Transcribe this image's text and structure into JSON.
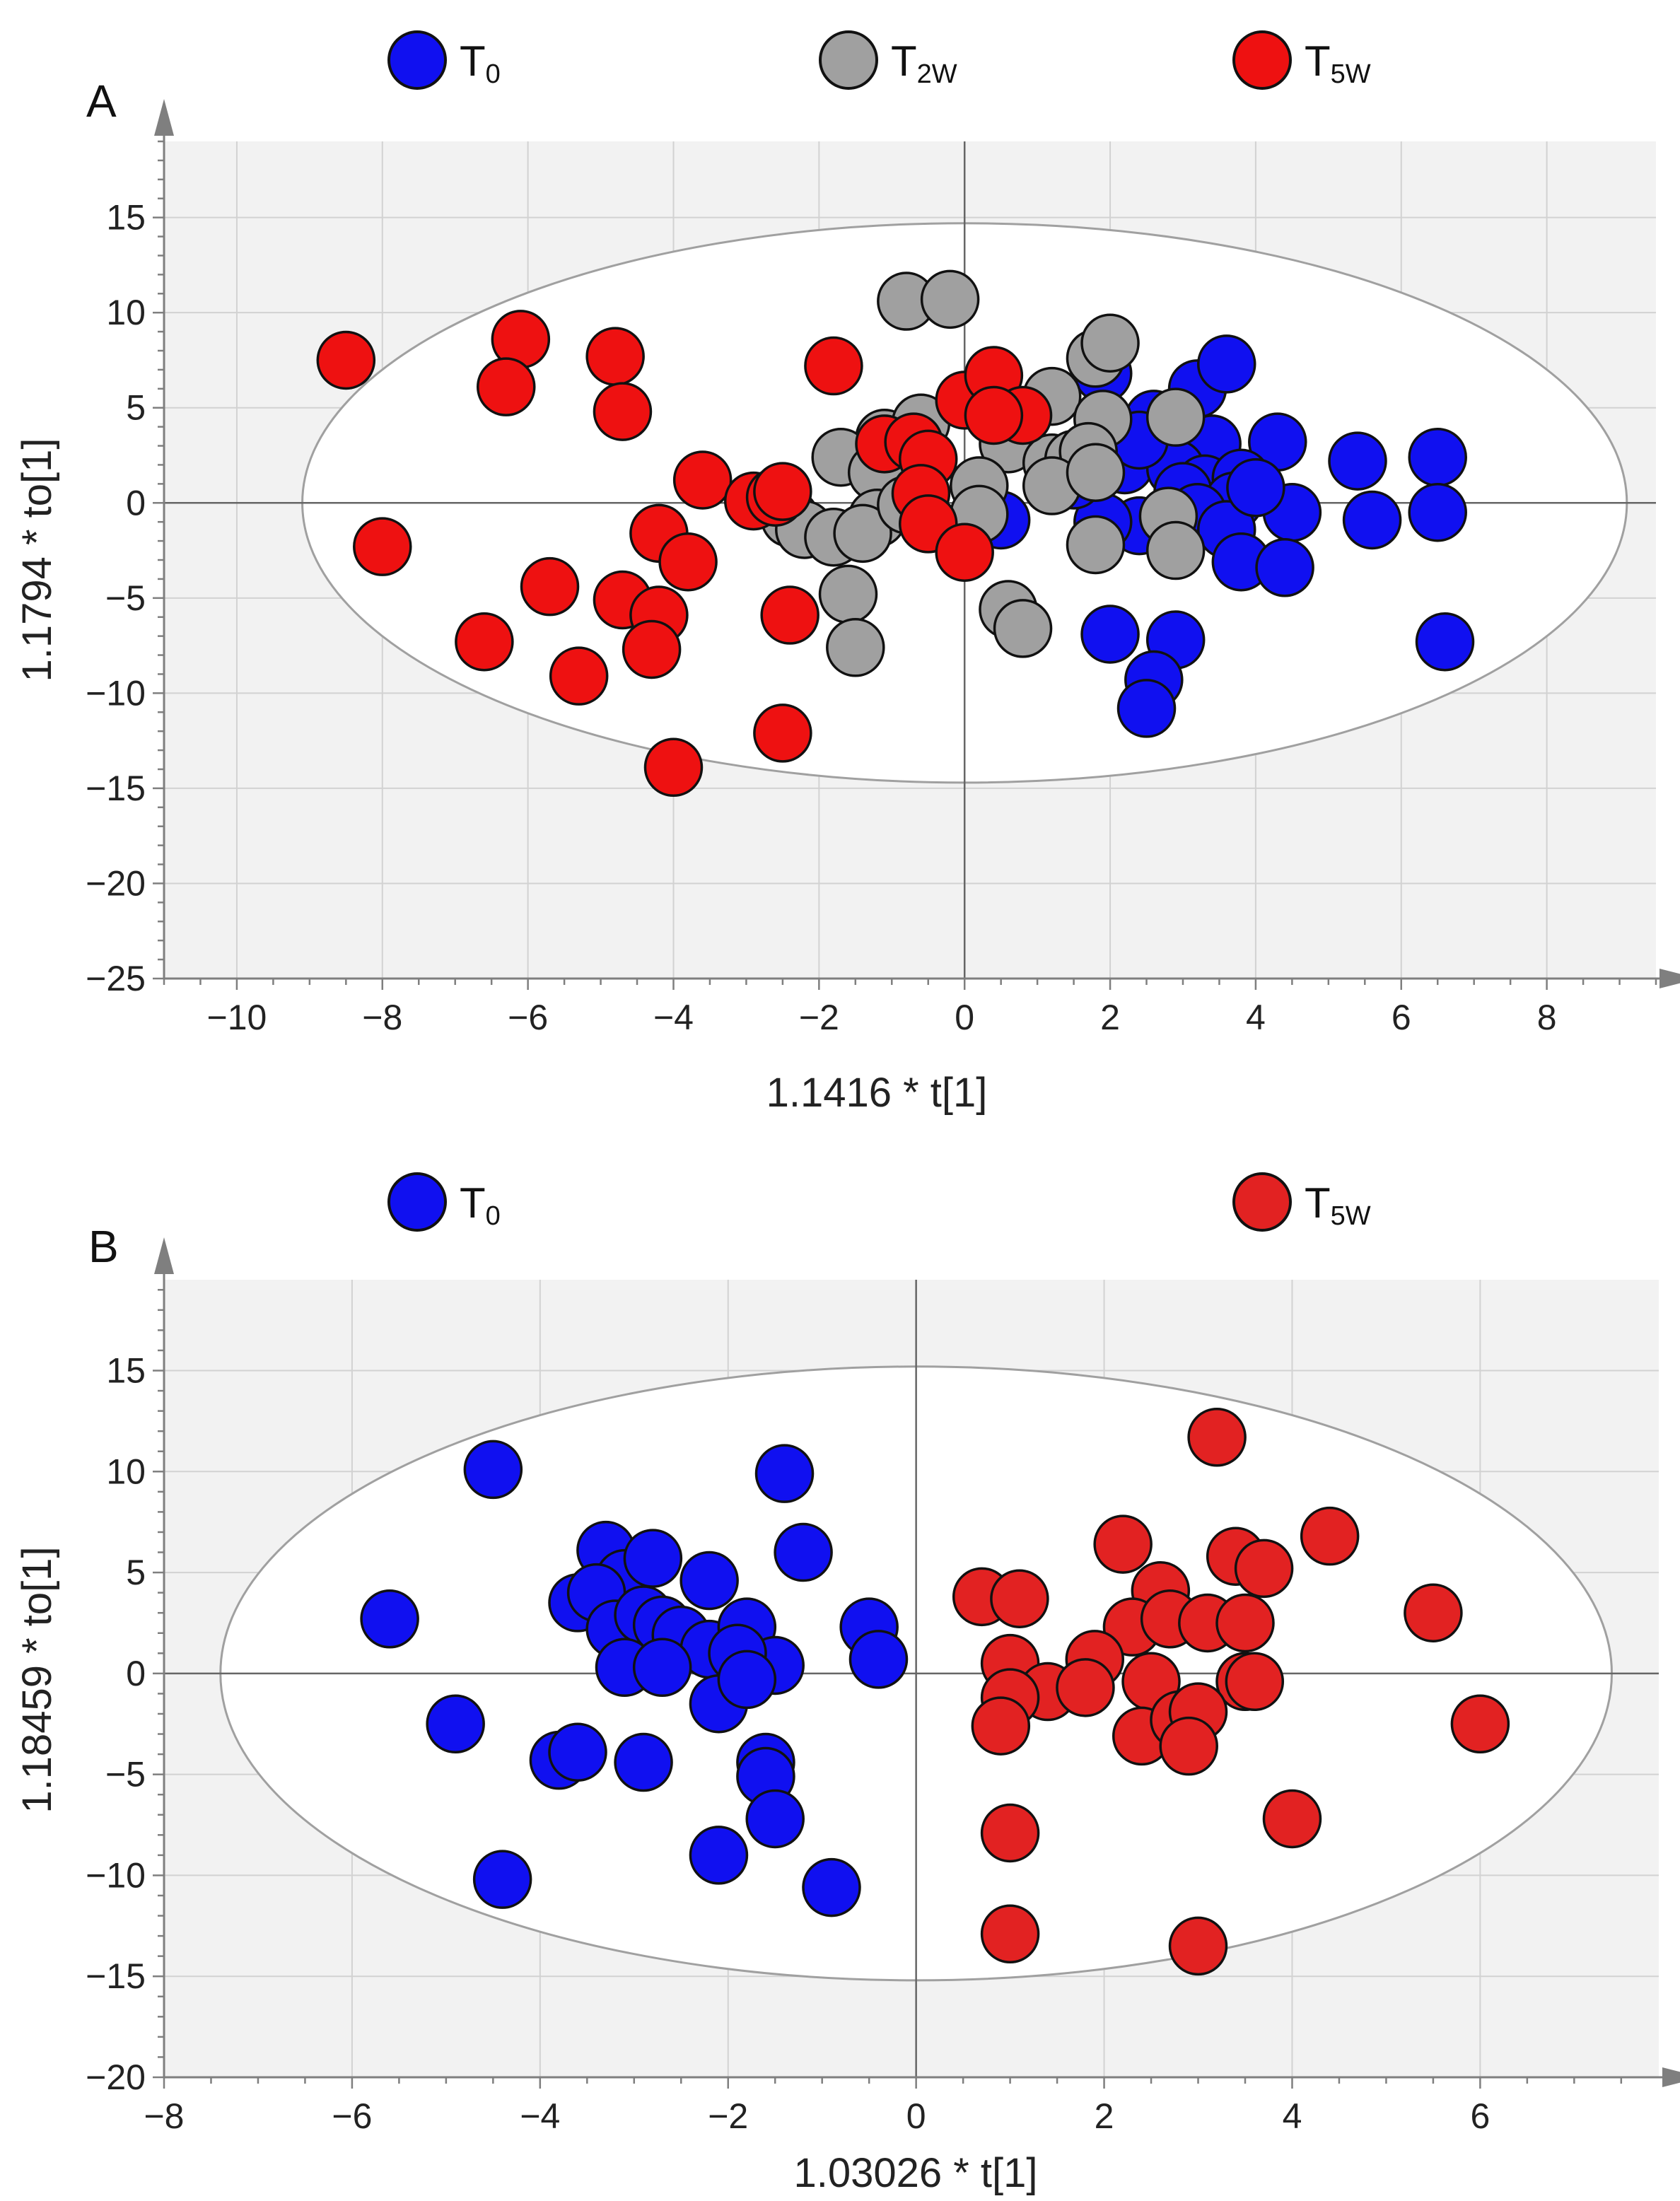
{
  "colors": {
    "T0": "#1010f0",
    "T2W": "#a0a0a0",
    "T5W": "#ee1111",
    "T5W_B": "#e22222",
    "plot_bg": "#f2f2f2",
    "grid": "#d2d2d2",
    "ellipse_fill": "#ffffff",
    "ellipse_stroke": "#a0a0a0",
    "axis": "#7f7f7f"
  },
  "chart_data": [
    {
      "type": "scatter",
      "panel_label": "A",
      "xlabel": "1.1416 * t[1]",
      "ylabel": "1.1794 * to[1]",
      "xlim": [
        -11,
        9.5
      ],
      "ylim": [
        -25,
        19
      ],
      "xticks": [
        "−10",
        "−8",
        "−6",
        "−4",
        "−2",
        "0",
        "2",
        "4",
        "6",
        "8"
      ],
      "xtick_values": [
        -10,
        -8,
        -6,
        -4,
        -2,
        0,
        2,
        4,
        6,
        8
      ],
      "yticks": [
        "15",
        "10",
        "5",
        "0",
        "−5",
        "−10",
        "−15",
        "−20",
        "−25"
      ],
      "ytick_values": [
        15,
        10,
        5,
        0,
        -5,
        -10,
        -15,
        -20,
        -25
      ],
      "ellipse": {
        "cx": 0,
        "cy": 0,
        "rx": 9.1,
        "ry": 14.7
      },
      "legend": [
        {
          "key": "T0",
          "main": "T",
          "sub": "0"
        },
        {
          "key": "T2W",
          "main": "T",
          "sub": "2W"
        },
        {
          "key": "T5W",
          "main": "T",
          "sub": "5W"
        }
      ],
      "series": [
        {
          "name": "T0",
          "color_key": "T0",
          "points": [
            [
              1.9,
              6.8
            ],
            [
              3.2,
              6.0
            ],
            [
              3.6,
              7.3
            ],
            [
              2.6,
              4.4
            ],
            [
              3.4,
              3.1
            ],
            [
              4.3,
              3.2
            ],
            [
              5.4,
              2.2
            ],
            [
              6.5,
              2.4
            ],
            [
              2.2,
              2.0
            ],
            [
              2.9,
              1.8
            ],
            [
              3.3,
              1.0
            ],
            [
              3.8,
              1.3
            ],
            [
              3.0,
              0.6
            ],
            [
              3.7,
              0.1
            ],
            [
              4.5,
              -0.5
            ],
            [
              5.6,
              -0.9
            ],
            [
              6.5,
              -0.5
            ],
            [
              3.2,
              -0.5
            ],
            [
              2.4,
              -1.2
            ],
            [
              3.6,
              -1.4
            ],
            [
              3.8,
              -3.1
            ],
            [
              4.4,
              -3.4
            ],
            [
              1.9,
              -1.0
            ],
            [
              0.5,
              -0.9
            ],
            [
              1.5,
              1.2
            ],
            [
              2.0,
              -6.9
            ],
            [
              2.9,
              -7.2
            ],
            [
              2.6,
              -9.3
            ],
            [
              2.5,
              -10.8
            ],
            [
              6.6,
              -7.3
            ],
            [
              4.0,
              0.8
            ],
            [
              2.4,
              3.3
            ]
          ]
        },
        {
          "name": "T2W",
          "color_key": "T2W",
          "points": [
            [
              -0.8,
              10.6
            ],
            [
              -0.2,
              10.7
            ],
            [
              1.8,
              7.6
            ],
            [
              2.0,
              8.4
            ],
            [
              1.2,
              5.6
            ],
            [
              1.9,
              4.4
            ],
            [
              2.9,
              4.5
            ],
            [
              -1.1,
              3.4
            ],
            [
              -0.6,
              4.2
            ],
            [
              0.6,
              3.1
            ],
            [
              1.2,
              2.1
            ],
            [
              1.5,
              2.3
            ],
            [
              1.7,
              2.7
            ],
            [
              -1.7,
              2.4
            ],
            [
              -1.2,
              1.6
            ],
            [
              0.2,
              0.9
            ],
            [
              1.2,
              0.9
            ],
            [
              1.8,
              1.6
            ],
            [
              -2.4,
              -0.8
            ],
            [
              -2.2,
              -1.4
            ],
            [
              -1.8,
              -1.8
            ],
            [
              -1.2,
              -0.8
            ],
            [
              -1.4,
              -1.6
            ],
            [
              -0.8,
              -0.1
            ],
            [
              0.2,
              -0.6
            ],
            [
              2.8,
              -0.7
            ],
            [
              2.9,
              -2.5
            ],
            [
              1.8,
              -2.2
            ],
            [
              -1.6,
              -4.8
            ],
            [
              -1.5,
              -7.6
            ],
            [
              0.6,
              -5.6
            ],
            [
              0.8,
              -6.6
            ]
          ]
        },
        {
          "name": "T5W",
          "color_key": "T5W",
          "points": [
            [
              -8.5,
              7.5
            ],
            [
              -6.1,
              8.6
            ],
            [
              -6.3,
              6.1
            ],
            [
              -4.8,
              7.7
            ],
            [
              -4.7,
              4.8
            ],
            [
              -1.8,
              7.2
            ],
            [
              -3.6,
              1.2
            ],
            [
              -2.9,
              0.1
            ],
            [
              -2.6,
              0.3
            ],
            [
              -2.5,
              0.6
            ],
            [
              -8.0,
              -2.3
            ],
            [
              -5.7,
              -4.4
            ],
            [
              -4.2,
              -1.6
            ],
            [
              -3.8,
              -3.1
            ],
            [
              -4.7,
              -5.1
            ],
            [
              -4.2,
              -5.9
            ],
            [
              -4.3,
              -7.7
            ],
            [
              -6.6,
              -7.3
            ],
            [
              -5.3,
              -9.1
            ],
            [
              -2.4,
              -5.9
            ],
            [
              -2.5,
              -12.1
            ],
            [
              -4.0,
              -13.9
            ],
            [
              0.0,
              5.4
            ],
            [
              0.4,
              6.7
            ],
            [
              0.8,
              4.6
            ],
            [
              0.4,
              4.6
            ],
            [
              -1.1,
              3.1
            ],
            [
              -0.7,
              3.2
            ],
            [
              -0.5,
              2.3
            ],
            [
              -0.6,
              0.5
            ],
            [
              -0.5,
              -1.1
            ],
            [
              0.0,
              -2.6
            ]
          ]
        }
      ]
    },
    {
      "type": "scatter",
      "panel_label": "B",
      "xlabel": "1.03026 * t[1]",
      "ylabel": "1.18459 * to[1]",
      "xlim": [
        -8,
        7.9
      ],
      "ylim": [
        -20,
        19.5
      ],
      "xticks": [
        "−8",
        "−6",
        "−4",
        "−2",
        "0",
        "2",
        "4",
        "6"
      ],
      "xtick_values": [
        -8,
        -6,
        -4,
        -2,
        0,
        2,
        4,
        6
      ],
      "yticks": [
        "15",
        "10",
        "5",
        "0",
        "−5",
        "−10",
        "−15",
        "−20"
      ],
      "ytick_values": [
        15,
        10,
        5,
        0,
        -5,
        -10,
        -15,
        -20
      ],
      "ellipse": {
        "cx": 0,
        "cy": 0,
        "rx": 7.4,
        "ry": 15.2
      },
      "legend": [
        {
          "key": "T0",
          "main": "T",
          "sub": "0"
        },
        {
          "key": "T5W_B",
          "main": "T",
          "sub": "5W"
        }
      ],
      "series": [
        {
          "name": "T0",
          "color_key": "T0",
          "points": [
            [
              -4.5,
              10.1
            ],
            [
              -1.4,
              9.9
            ],
            [
              -1.2,
              6.0
            ],
            [
              -5.6,
              2.7
            ],
            [
              -3.3,
              6.1
            ],
            [
              -3.1,
              4.7
            ],
            [
              -2.8,
              5.7
            ],
            [
              -2.2,
              4.6
            ],
            [
              -3.6,
              3.5
            ],
            [
              -3.4,
              4.0
            ],
            [
              -3.2,
              2.2
            ],
            [
              -2.9,
              2.9
            ],
            [
              -2.7,
              2.4
            ],
            [
              -2.5,
              1.9
            ],
            [
              -2.2,
              1.2
            ],
            [
              -1.8,
              2.3
            ],
            [
              -1.5,
              0.4
            ],
            [
              -1.9,
              1.0
            ],
            [
              -3.1,
              0.3
            ],
            [
              -2.7,
              0.3
            ],
            [
              -2.1,
              -1.5
            ],
            [
              -1.8,
              -0.3
            ],
            [
              -0.5,
              2.3
            ],
            [
              -0.4,
              0.7
            ],
            [
              -4.9,
              -2.5
            ],
            [
              -3.8,
              -4.3
            ],
            [
              -3.6,
              -3.9
            ],
            [
              -2.9,
              -4.4
            ],
            [
              -1.6,
              -4.4
            ],
            [
              -1.6,
              -5.1
            ],
            [
              -1.5,
              -7.2
            ],
            [
              -2.1,
              -9.0
            ],
            [
              -0.9,
              -10.6
            ],
            [
              -4.4,
              -10.2
            ]
          ]
        },
        {
          "name": "T5W",
          "color_key": "T5W_B",
          "points": [
            [
              3.2,
              11.7
            ],
            [
              2.2,
              6.4
            ],
            [
              4.4,
              6.8
            ],
            [
              0.7,
              3.8
            ],
            [
              1.1,
              3.7
            ],
            [
              2.6,
              4.1
            ],
            [
              3.4,
              5.8
            ],
            [
              3.7,
              5.2
            ],
            [
              2.3,
              2.3
            ],
            [
              2.7,
              2.7
            ],
            [
              3.1,
              2.5
            ],
            [
              3.5,
              2.5
            ],
            [
              5.5,
              3.0
            ],
            [
              1.0,
              0.5
            ],
            [
              1.9,
              0.7
            ],
            [
              1.4,
              -0.9
            ],
            [
              1.8,
              -0.7
            ],
            [
              2.5,
              -0.4
            ],
            [
              3.5,
              -0.4
            ],
            [
              3.6,
              -0.4
            ],
            [
              1.0,
              -1.2
            ],
            [
              0.9,
              -2.6
            ],
            [
              2.4,
              -3.1
            ],
            [
              2.8,
              -2.3
            ],
            [
              3.0,
              -1.9
            ],
            [
              2.9,
              -3.6
            ],
            [
              6.0,
              -2.5
            ],
            [
              4.0,
              -7.2
            ],
            [
              1.0,
              -7.9
            ],
            [
              1.0,
              -12.9
            ],
            [
              3.0,
              -13.5
            ]
          ]
        }
      ]
    }
  ]
}
